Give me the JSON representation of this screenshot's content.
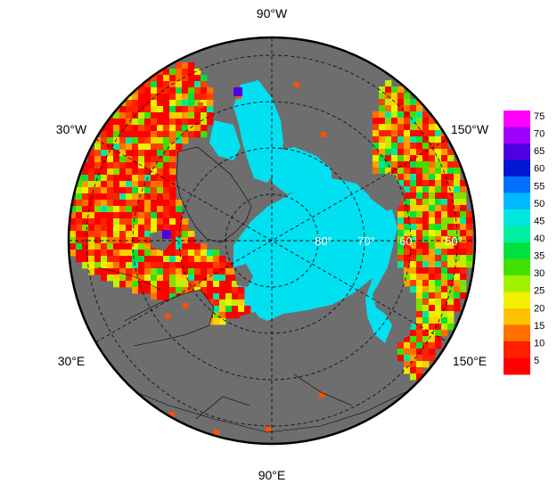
{
  "map": {
    "projection": "north-polar-stereographic",
    "land_color": "#6e6e6e",
    "ocean_color": "#00e0f0",
    "lon_labels": {
      "top": "90°W",
      "bottom": "90°E",
      "upper_left": "30°W",
      "lower_left": "30°E",
      "upper_right": "150°W",
      "lower_right": "150°E"
    },
    "lat_labels": [
      "80°",
      "70°",
      "60°",
      "50°"
    ]
  },
  "colorbar": {
    "ticks": [
      "75",
      "70",
      "65",
      "60",
      "55",
      "50",
      "45",
      "40",
      "35",
      "30",
      "25",
      "20",
      "15",
      "10",
      "5"
    ],
    "colors": [
      "#ff00ff",
      "#a000ff",
      "#5000e0",
      "#0018d0",
      "#0070ff",
      "#00b8ff",
      "#00e8e0",
      "#00f0a0",
      "#00e040",
      "#40e000",
      "#a0f000",
      "#f0f000",
      "#ffc000",
      "#ff7000",
      "#ff2000",
      "#ff0000"
    ]
  }
}
